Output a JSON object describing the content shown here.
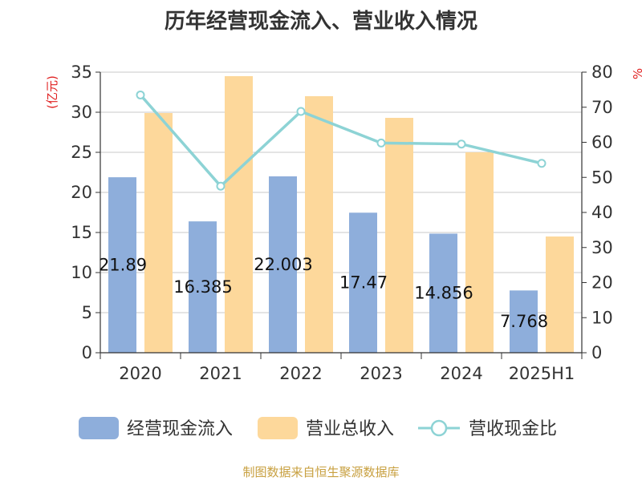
{
  "chart_data": {
    "type": "bar",
    "title": "历年经营现金流入、营业收入情况",
    "left_unit": "(亿元)",
    "right_unit": "%",
    "categories": [
      "2020",
      "2021",
      "2022",
      "2023",
      "2024",
      "2025H1"
    ],
    "series": [
      {
        "name": "经营现金流入",
        "type": "bar",
        "axis": "left",
        "color": "#8eaedb",
        "values": [
          21.89,
          16.385,
          22.003,
          17.47,
          14.856,
          7.768
        ],
        "labels": [
          "21.89",
          "16.385",
          "22.003",
          "17.47",
          "14.856",
          "7.768"
        ]
      },
      {
        "name": "营业总收入",
        "type": "bar",
        "axis": "left",
        "color": "#fdd89b",
        "values": [
          29.9,
          34.5,
          32.0,
          29.3,
          25.0,
          14.5
        ]
      },
      {
        "name": "营收现金比",
        "type": "line",
        "axis": "right",
        "color": "#8dd3d5",
        "values": [
          73.5,
          47.5,
          68.8,
          59.8,
          59.5,
          54.0
        ]
      }
    ],
    "left_axis": {
      "min": 0,
      "max": 35,
      "ticks": [
        0,
        5,
        10,
        15,
        20,
        25,
        30,
        35
      ]
    },
    "right_axis": {
      "min": 0,
      "max": 80,
      "ticks": [
        0,
        10,
        20,
        30,
        40,
        50,
        60,
        70,
        80
      ]
    },
    "grid": true,
    "legend_position": "bottom"
  },
  "footer": {
    "source": "制图数据来自恒生聚源数据库"
  }
}
